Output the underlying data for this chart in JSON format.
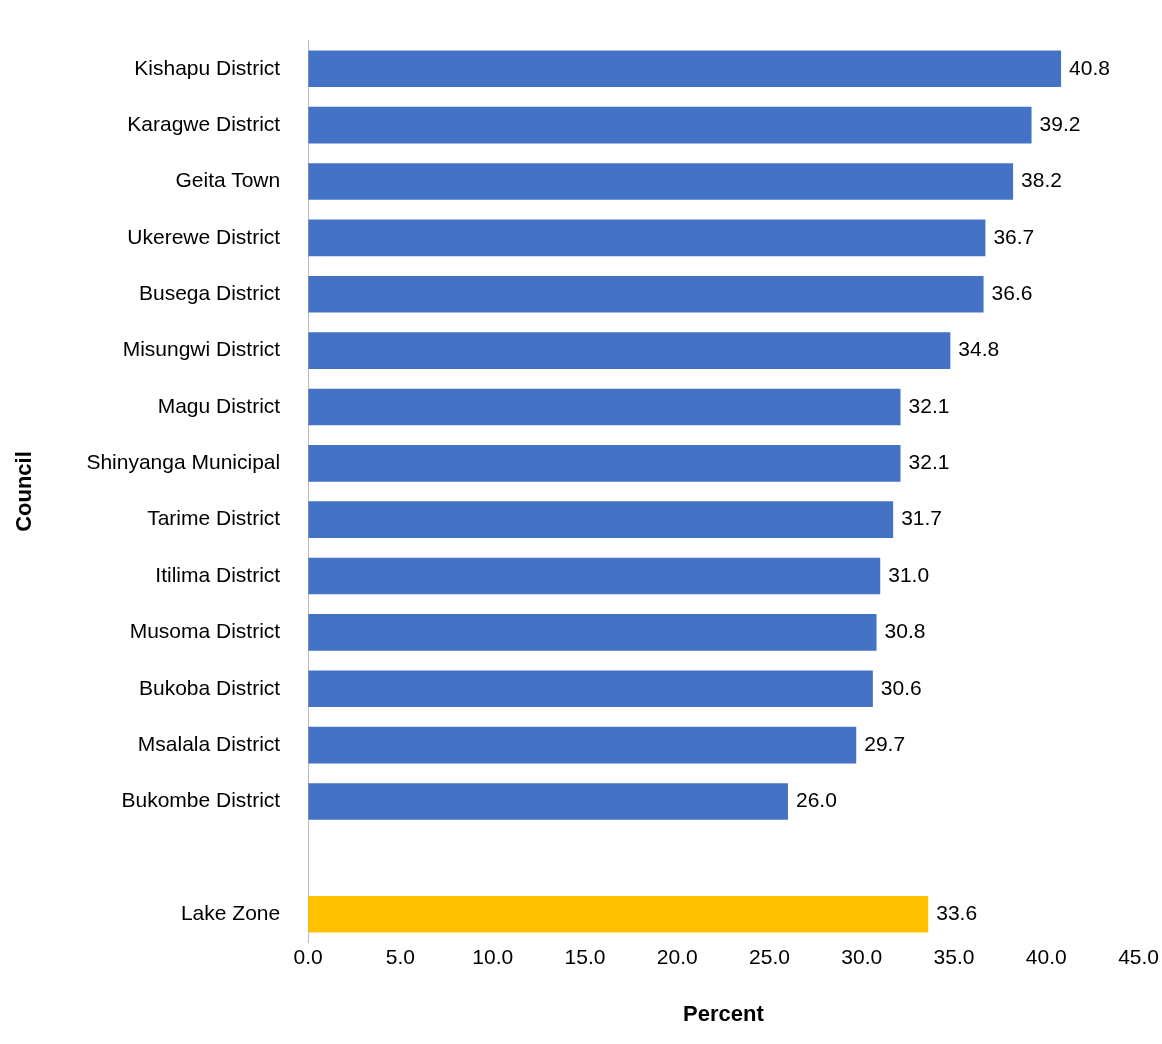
{
  "chart_data": {
    "type": "bar",
    "orientation": "horizontal",
    "xlabel": "Percent",
    "ylabel": "Council",
    "categories": [
      "Kishapu District",
      "Karagwe District",
      "Geita Town",
      "Ukerewe District",
      "Busega District",
      "Misungwi District",
      "Magu District",
      "Shinyanga Municipal",
      "Tarime District",
      "Itilima District",
      "Musoma District",
      "Bukoba District",
      "Msalala District",
      "Bukombe District",
      null,
      "Lake Zone"
    ],
    "values": [
      40.8,
      39.2,
      38.2,
      36.7,
      36.6,
      34.8,
      32.1,
      32.1,
      31.7,
      31.0,
      30.8,
      30.6,
      29.7,
      26.0,
      null,
      33.6
    ],
    "value_labels": [
      "40.8",
      "39.2",
      "38.2",
      "36.7",
      "36.6",
      "34.8",
      "32.1",
      "32.1",
      "31.7",
      "31.0",
      "30.8",
      "30.6",
      "29.7",
      "26.0",
      null,
      "33.6"
    ],
    "colors": [
      "#4472c4",
      "#4472c4",
      "#4472c4",
      "#4472c4",
      "#4472c4",
      "#4472c4",
      "#4472c4",
      "#4472c4",
      "#4472c4",
      "#4472c4",
      "#4472c4",
      "#4472c4",
      "#4472c4",
      "#4472c4",
      "#4472c4",
      "#ffc000"
    ],
    "xlim": [
      0,
      45
    ],
    "xticks": [
      {
        "value": 0,
        "label": "0.0"
      },
      {
        "value": 5,
        "label": "5.0"
      },
      {
        "value": 10,
        "label": "10.0"
      },
      {
        "value": 15,
        "label": "15.0"
      },
      {
        "value": 20,
        "label": "20.0"
      },
      {
        "value": 25,
        "label": "25.0"
      },
      {
        "value": 30,
        "label": "30.0"
      },
      {
        "value": 35,
        "label": "35.0"
      },
      {
        "value": 40,
        "label": "40.0"
      },
      {
        "value": 45,
        "label": "45.0"
      }
    ],
    "grid": false,
    "legend": false
  }
}
